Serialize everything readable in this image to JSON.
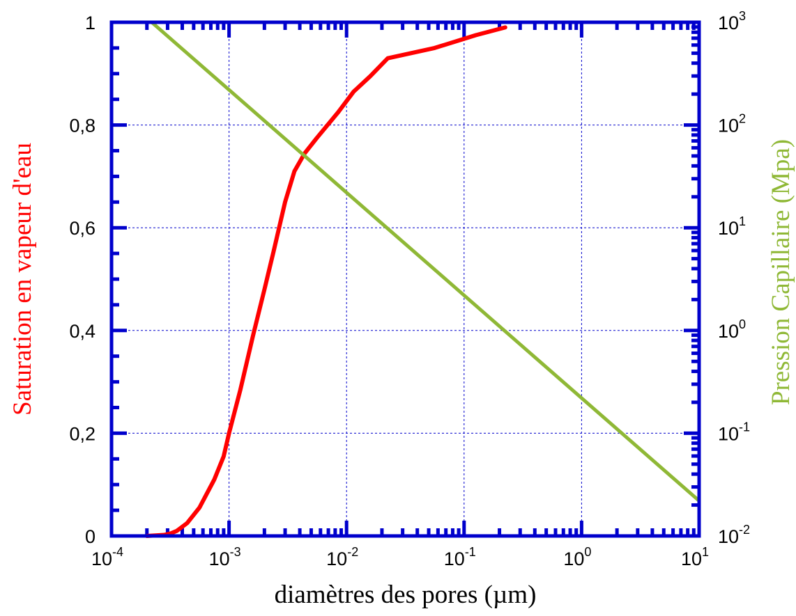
{
  "chart_data": {
    "type": "line",
    "x_axis": {
      "label": "diamètres des pores (µm)",
      "scale": "log",
      "range": [
        0.0001,
        10
      ],
      "ticks": [
        {
          "base": "10",
          "exp": "-4",
          "value": 0.0001
        },
        {
          "base": "10",
          "exp": "-3",
          "value": 0.001
        },
        {
          "base": "10",
          "exp": "-2",
          "value": 0.01
        },
        {
          "base": "10",
          "exp": "-1",
          "value": 0.1
        },
        {
          "base": "10",
          "exp": "0",
          "value": 1
        },
        {
          "base": "10",
          "exp": "1",
          "value": 10
        }
      ]
    },
    "y_axis_left": {
      "label": "Saturation en vapeur d'eau",
      "scale": "linear",
      "range": [
        0,
        1
      ],
      "color": "#ff0000",
      "ticks": [
        {
          "label": "0",
          "value": 0
        },
        {
          "label": "0,2",
          "value": 0.2
        },
        {
          "label": "0,4",
          "value": 0.4
        },
        {
          "label": "0,6",
          "value": 0.6
        },
        {
          "label": "0,8",
          "value": 0.8
        },
        {
          "label": "1",
          "value": 1
        }
      ]
    },
    "y_axis_right": {
      "label": "Pression Capillaire (Mpa)",
      "scale": "log",
      "range": [
        0.01,
        1000
      ],
      "color": "#8fb836",
      "ticks": [
        {
          "base": "10",
          "exp": "-2",
          "value": 0.01
        },
        {
          "base": "10",
          "exp": "-1",
          "value": 0.1
        },
        {
          "base": "10",
          "exp": "0",
          "value": 1
        },
        {
          "base": "10",
          "exp": "1",
          "value": 10
        },
        {
          "base": "10",
          "exp": "2",
          "value": 100
        },
        {
          "base": "10",
          "exp": "3",
          "value": 1000
        }
      ]
    },
    "grid": true,
    "frame_color": "#0000cc",
    "grid_color": "#0000cc",
    "series": [
      {
        "axis": "left",
        "color": "#ff0000",
        "x": [
          0.0002,
          0.00028,
          0.00032,
          0.00036,
          0.00044,
          0.00056,
          0.00075,
          0.0009,
          0.001,
          0.00125,
          0.0016,
          0.002,
          0.0024,
          0.003,
          0.0036,
          0.0044,
          0.0056,
          0.0075,
          0.0085,
          0.0115,
          0.0159,
          0.0224,
          0.0562,
          0.1259,
          0.2239
        ],
        "y": [
          0,
          0.002,
          0.005,
          0.01,
          0.025,
          0.055,
          0.11,
          0.155,
          0.2,
          0.285,
          0.39,
          0.48,
          0.555,
          0.65,
          0.71,
          0.745,
          0.775,
          0.81,
          0.825,
          0.865,
          0.895,
          0.93,
          0.95,
          0.975,
          0.99
        ]
      },
      {
        "axis": "right",
        "color": "#8fb836",
        "x": [
          0.00022,
          10
        ],
        "y": [
          1000,
          0.022
        ]
      }
    ]
  }
}
